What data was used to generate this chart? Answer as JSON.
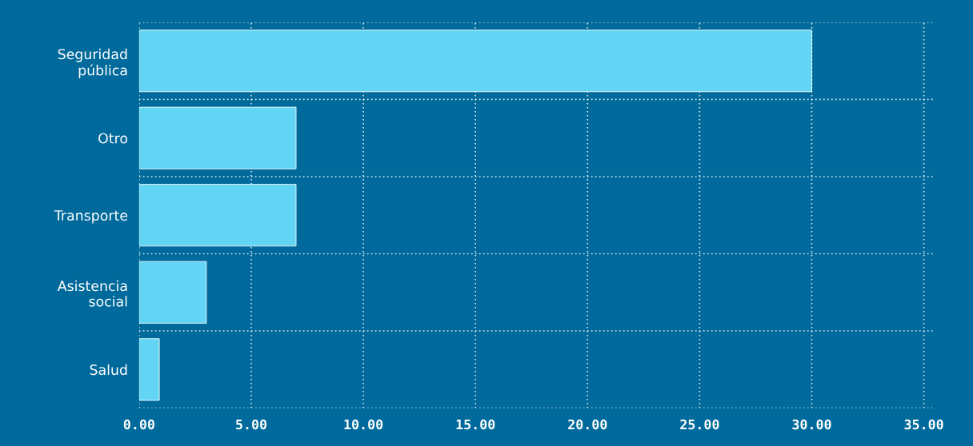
{
  "chart_data": {
    "type": "bar",
    "orientation": "horizontal",
    "categories": [
      "Seguridad\npública",
      "Otro",
      "Transporte",
      "Asistencia\nsocial",
      "Salud"
    ],
    "values": [
      30,
      7,
      7,
      3,
      0.9
    ],
    "color": "#62d5f4",
    "xlim": [
      0,
      35.5
    ],
    "xticks": [
      {
        "value": 0,
        "label": "0.00"
      },
      {
        "value": 5,
        "label": "5.00"
      },
      {
        "value": 10,
        "label": "10.00"
      },
      {
        "value": 15,
        "label": "15.00"
      },
      {
        "value": 20,
        "label": "20.00"
      },
      {
        "value": 25,
        "label": "25.00"
      },
      {
        "value": 30,
        "label": "30.00"
      },
      {
        "value": 35,
        "label": "35.00"
      }
    ],
    "grid": true,
    "legend": false
  }
}
